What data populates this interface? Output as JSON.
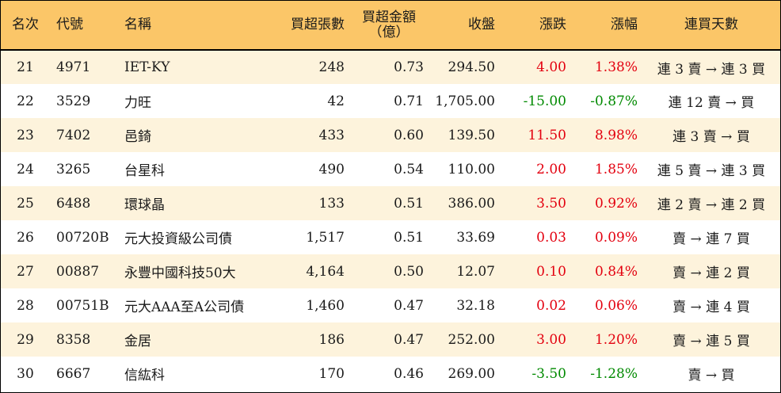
{
  "colors": {
    "header_bg": "#fbc668",
    "odd_row_bg": "#fdf3dc",
    "up": "#e3000f",
    "down": "#008a00"
  },
  "headers": {
    "rank": "名次",
    "code": "代號",
    "name": "名稱",
    "net_buy_lots": "買超張數",
    "net_buy_amount_line1": "買超金額",
    "net_buy_amount_line2": "（億）",
    "close": "收盤",
    "change": "漲跌",
    "change_pct": "漲幅",
    "streak": "連買天數"
  },
  "rows": [
    {
      "rank": "21",
      "code": "4971",
      "name": "IET-KY",
      "lots": "248",
      "amount": "0.73",
      "close": "294.50",
      "change": "4.00",
      "pct": "1.38%",
      "dir": "up",
      "streak": "連 3 賣 → 連 3 買"
    },
    {
      "rank": "22",
      "code": "3529",
      "name": "力旺",
      "lots": "42",
      "amount": "0.71",
      "close": "1,705.00",
      "change": "-15.00",
      "pct": "-0.87%",
      "dir": "down",
      "streak": "連 12 賣 → 買"
    },
    {
      "rank": "23",
      "code": "7402",
      "name": "邑錡",
      "lots": "433",
      "amount": "0.60",
      "close": "139.50",
      "change": "11.50",
      "pct": "8.98%",
      "dir": "up",
      "streak": "連 3 賣 → 買"
    },
    {
      "rank": "24",
      "code": "3265",
      "name": "台星科",
      "lots": "490",
      "amount": "0.54",
      "close": "110.00",
      "change": "2.00",
      "pct": "1.85%",
      "dir": "up",
      "streak": "連 5 賣 → 連 3 買"
    },
    {
      "rank": "25",
      "code": "6488",
      "name": "環球晶",
      "lots": "133",
      "amount": "0.51",
      "close": "386.00",
      "change": "3.50",
      "pct": "0.92%",
      "dir": "up",
      "streak": "連 2 賣 → 連 2 買"
    },
    {
      "rank": "26",
      "code": "00720B",
      "name": "元大投資級公司債",
      "lots": "1,517",
      "amount": "0.51",
      "close": "33.69",
      "change": "0.03",
      "pct": "0.09%",
      "dir": "up",
      "streak": "賣 → 連 7 買"
    },
    {
      "rank": "27",
      "code": "00887",
      "name": "永豐中國科技50大",
      "lots": "4,164",
      "amount": "0.50",
      "close": "12.07",
      "change": "0.10",
      "pct": "0.84%",
      "dir": "up",
      "streak": "賣 → 連 2 買"
    },
    {
      "rank": "28",
      "code": "00751B",
      "name": "元大AAA至A公司債",
      "lots": "1,460",
      "amount": "0.47",
      "close": "32.18",
      "change": "0.02",
      "pct": "0.06%",
      "dir": "up",
      "streak": "賣 → 連 4 買"
    },
    {
      "rank": "29",
      "code": "8358",
      "name": "金居",
      "lots": "186",
      "amount": "0.47",
      "close": "252.00",
      "change": "3.00",
      "pct": "1.20%",
      "dir": "up",
      "streak": "賣 → 連 5 買"
    },
    {
      "rank": "30",
      "code": "6667",
      "name": "信紘科",
      "lots": "170",
      "amount": "0.46",
      "close": "269.00",
      "change": "-3.50",
      "pct": "-1.28%",
      "dir": "down",
      "streak": "賣 → 買"
    }
  ]
}
